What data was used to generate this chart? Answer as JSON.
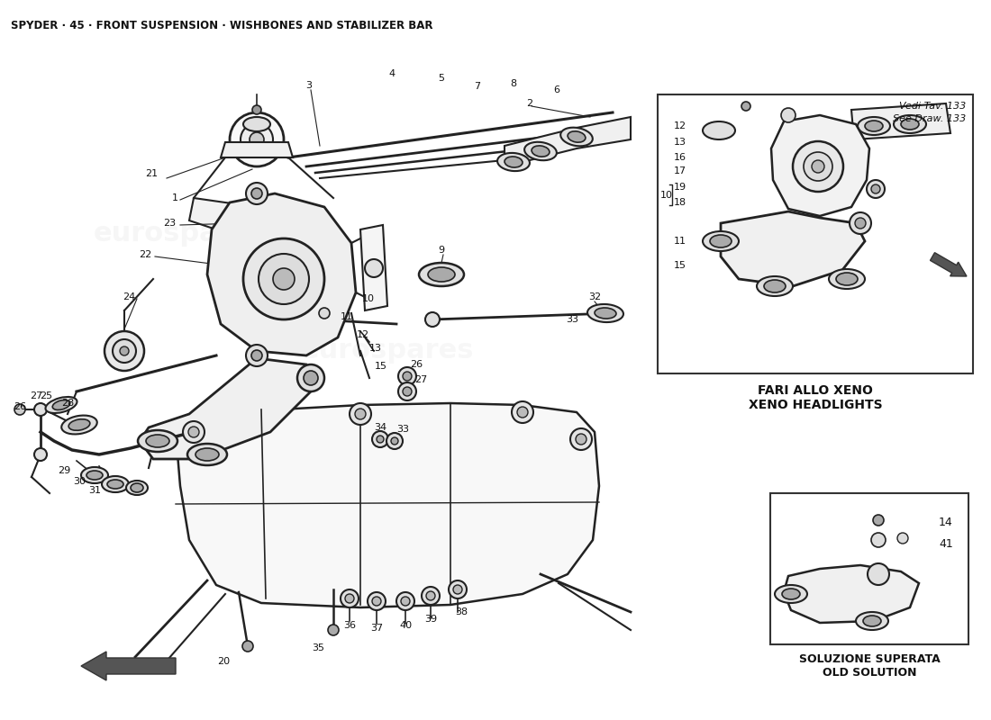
{
  "title": "SPYDER · 45 · FRONT SUSPENSION · WISHBONES AND STABILIZER BAR",
  "bg_color": "#ffffff",
  "fig_width": 11.0,
  "fig_height": 8.0,
  "dpi": 100,
  "watermark_text": "eurospares",
  "box1_note_it": "Vedi Tav. 133",
  "box1_note_en": "See Draw. 133",
  "box1_caption": "FARI ALLO XENO\nXENO HEADLIGHTS",
  "box2_caption": "SOLUZIONE SUPERATA\nOLD SOLUTION",
  "line_color": "#222222",
  "text_color": "#111111"
}
